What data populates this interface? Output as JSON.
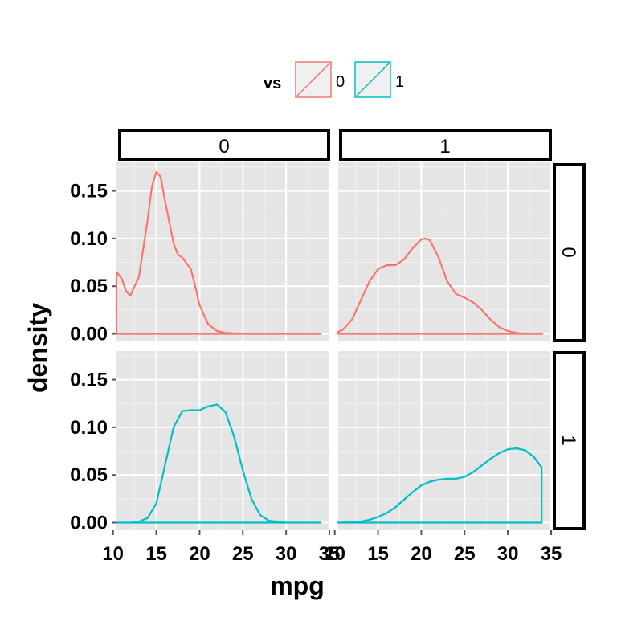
{
  "chart_data": {
    "type": "line",
    "subtype": "faceted density (facet_grid rows=am, cols=vs)",
    "xlabel": "mpg",
    "ylabel": "density",
    "xlim": [
      10.4,
      35
    ],
    "ylim": [
      -0.008,
      0.18
    ],
    "x_ticks": [
      10,
      15,
      20,
      25,
      30,
      35
    ],
    "x_tick_labels": [
      "10",
      "15",
      "20",
      "25",
      "30",
      "35"
    ],
    "y_ticks": [
      0,
      0.05,
      0.1,
      0.15
    ],
    "y_tick_labels": [
      "0.00",
      "0.05",
      "0.10",
      "0.15"
    ],
    "legend": {
      "title": "vs",
      "position": "top",
      "entries": [
        {
          "label": "0",
          "color": "#F8766D"
        },
        {
          "label": "1",
          "color": "#00BFC4"
        }
      ]
    },
    "col_strips": [
      "0",
      "1"
    ],
    "row_strips": [
      "0",
      "1"
    ],
    "panels": [
      {
        "row": 0,
        "col": 0,
        "series": "0",
        "color": "#F8766D",
        "x": [
          10.4,
          11,
          11.5,
          12,
          13,
          14,
          14.5,
          15,
          15.5,
          16,
          17,
          17.5,
          18,
          19,
          19.5,
          20,
          21,
          22,
          23,
          24,
          26,
          28,
          30,
          32,
          34
        ],
        "y": [
          0.065,
          0.058,
          0.045,
          0.04,
          0.06,
          0.12,
          0.155,
          0.17,
          0.165,
          0.14,
          0.095,
          0.083,
          0.08,
          0.068,
          0.05,
          0.03,
          0.01,
          0.003,
          0.001,
          0.0005,
          0,
          0,
          0,
          0,
          0
        ]
      },
      {
        "row": 0,
        "col": 1,
        "series": "0",
        "color": "#F8766D",
        "x": [
          10.4,
          11,
          12,
          13,
          14,
          15,
          16,
          17,
          18,
          19,
          20,
          20.5,
          21,
          22,
          23,
          24,
          25,
          26,
          27,
          28,
          29,
          30,
          31,
          32,
          33,
          34
        ],
        "y": [
          0.002,
          0.005,
          0.015,
          0.035,
          0.055,
          0.068,
          0.072,
          0.072,
          0.078,
          0.09,
          0.099,
          0.1,
          0.098,
          0.08,
          0.055,
          0.042,
          0.038,
          0.033,
          0.025,
          0.015,
          0.007,
          0.003,
          0.001,
          0,
          0,
          0
        ]
      },
      {
        "row": 1,
        "col": 0,
        "series": "1",
        "color": "#00BFC4",
        "x": [
          10.4,
          12,
          13,
          14,
          15,
          16,
          17,
          18,
          19,
          20,
          21,
          22,
          23,
          24,
          25,
          26,
          27,
          28,
          30,
          32,
          34
        ],
        "y": [
          0,
          0,
          0.001,
          0.005,
          0.02,
          0.06,
          0.1,
          0.117,
          0.118,
          0.118,
          0.122,
          0.124,
          0.116,
          0.09,
          0.055,
          0.025,
          0.008,
          0.002,
          0,
          0,
          0
        ]
      },
      {
        "row": 1,
        "col": 1,
        "series": "1",
        "color": "#00BFC4",
        "x": [
          10.4,
          12,
          13,
          14,
          15,
          16,
          17,
          18,
          19,
          20,
          21,
          22,
          23,
          24,
          25,
          26,
          27,
          28,
          29,
          30,
          31,
          32,
          33,
          33.9
        ],
        "y": [
          0,
          0.0005,
          0.001,
          0.003,
          0.006,
          0.01,
          0.016,
          0.024,
          0.032,
          0.039,
          0.043,
          0.045,
          0.046,
          0.046,
          0.048,
          0.053,
          0.06,
          0.067,
          0.073,
          0.077,
          0.078,
          0.076,
          0.069,
          0.058
        ]
      }
    ]
  }
}
